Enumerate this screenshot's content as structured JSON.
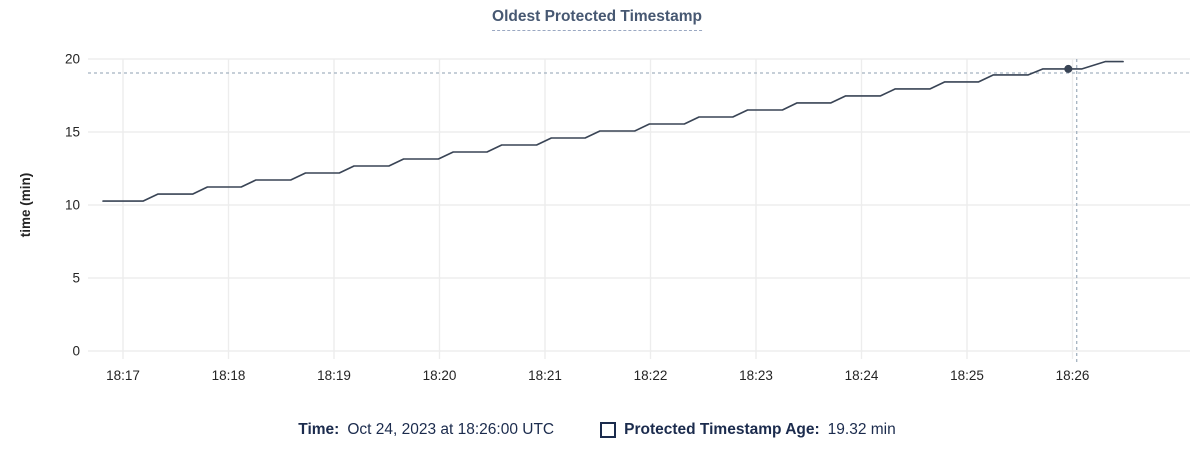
{
  "title": "Oldest Protected Timestamp",
  "legend": {
    "time_label": "Time:",
    "time_value": "Oct 24, 2023 at 18:26:00 UTC",
    "series_label": "Protected Timestamp Age:",
    "series_value": "19.32 min"
  },
  "colors": {
    "title": "#475872",
    "axis_text": "#242424",
    "grid": "#ededed",
    "line": "#394455",
    "dot": "#394455",
    "crosshair": "#a4b2c0",
    "legend_text": "#1b2b4d"
  },
  "chart_data": {
    "type": "line",
    "title": "Oldest Protected Timestamp",
    "xlabel": "",
    "ylabel": "time (min)",
    "x_ticks": [
      "18:17",
      "18:18",
      "18:19",
      "18:20",
      "18:21",
      "18:22",
      "18:23",
      "18:24",
      "18:25",
      "18:26"
    ],
    "y_ticks": [
      0,
      5,
      10,
      15,
      20
    ],
    "ylim": [
      0,
      20
    ],
    "grid": true,
    "legend_position": "bottom",
    "series": [
      {
        "name": "Protected Timestamp Age",
        "unit": "min",
        "x_unit": "minutes after 18:17 UTC",
        "points": [
          [
            -0.19,
            10.27
          ],
          [
            0.19,
            10.27
          ],
          [
            0.33,
            10.75
          ],
          [
            0.66,
            10.75
          ],
          [
            0.8,
            11.23
          ],
          [
            1.12,
            11.23
          ],
          [
            1.26,
            11.71
          ],
          [
            1.59,
            11.71
          ],
          [
            1.73,
            12.19
          ],
          [
            2.05,
            12.19
          ],
          [
            2.19,
            12.67
          ],
          [
            2.52,
            12.67
          ],
          [
            2.66,
            13.15
          ],
          [
            2.99,
            13.15
          ],
          [
            3.13,
            13.63
          ],
          [
            3.45,
            13.63
          ],
          [
            3.59,
            14.11
          ],
          [
            3.92,
            14.11
          ],
          [
            4.06,
            14.59
          ],
          [
            4.38,
            14.59
          ],
          [
            4.52,
            15.07
          ],
          [
            4.85,
            15.07
          ],
          [
            4.99,
            15.55
          ],
          [
            5.32,
            15.55
          ],
          [
            5.46,
            16.03
          ],
          [
            5.78,
            16.03
          ],
          [
            5.92,
            16.51
          ],
          [
            6.25,
            16.51
          ],
          [
            6.39,
            16.99
          ],
          [
            6.71,
            16.99
          ],
          [
            6.85,
            17.47
          ],
          [
            7.18,
            17.47
          ],
          [
            7.32,
            17.95
          ],
          [
            7.65,
            17.95
          ],
          [
            7.79,
            18.43
          ],
          [
            8.11,
            18.43
          ],
          [
            8.25,
            18.91
          ],
          [
            8.58,
            18.91
          ],
          [
            8.72,
            19.32
          ],
          [
            9.09,
            19.32
          ],
          [
            9.31,
            19.82
          ],
          [
            9.48,
            19.82
          ]
        ]
      }
    ],
    "highlight": {
      "time": "18:26:00",
      "t": 8.96,
      "value": 19.32,
      "crosshair_t": 9.04,
      "crosshair_value": 19.04
    }
  }
}
